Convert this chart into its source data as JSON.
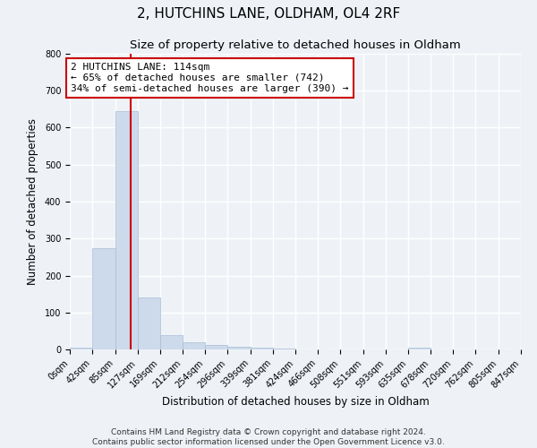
{
  "title": "2, HUTCHINS LANE, OLDHAM, OL4 2RF",
  "subtitle": "Size of property relative to detached houses in Oldham",
  "xlabel": "Distribution of detached houses by size in Oldham",
  "ylabel": "Number of detached properties",
  "bar_color": "#ccdaeb",
  "bar_edge_color": "#aabdd4",
  "vline_x": 114,
  "vline_color": "#cc0000",
  "annotation_text": "2 HUTCHINS LANE: 114sqm\n← 65% of detached houses are smaller (742)\n34% of semi-detached houses are larger (390) →",
  "annotation_box_facecolor": "#ffffff",
  "annotation_box_edgecolor": "#cc0000",
  "bin_edges": [
    0,
    42,
    85,
    127,
    169,
    212,
    254,
    296,
    339,
    381,
    424,
    466,
    508,
    551,
    593,
    635,
    678,
    720,
    762,
    805,
    847
  ],
  "bin_counts": [
    5,
    275,
    645,
    140,
    38,
    20,
    13,
    8,
    5,
    2,
    0,
    0,
    0,
    0,
    0,
    5,
    0,
    0,
    0,
    0
  ],
  "ylim": [
    0,
    800
  ],
  "yticks": [
    0,
    100,
    200,
    300,
    400,
    500,
    600,
    700,
    800
  ],
  "xlim": [
    0,
    847
  ],
  "footer_text": "Contains HM Land Registry data © Crown copyright and database right 2024.\nContains public sector information licensed under the Open Government Licence v3.0.",
  "bg_color": "#eef2f7",
  "grid_color": "#ffffff",
  "title_fontsize": 11,
  "subtitle_fontsize": 9.5,
  "axis_label_fontsize": 8.5,
  "tick_label_fontsize": 7,
  "annotation_fontsize": 8,
  "footer_fontsize": 6.5
}
